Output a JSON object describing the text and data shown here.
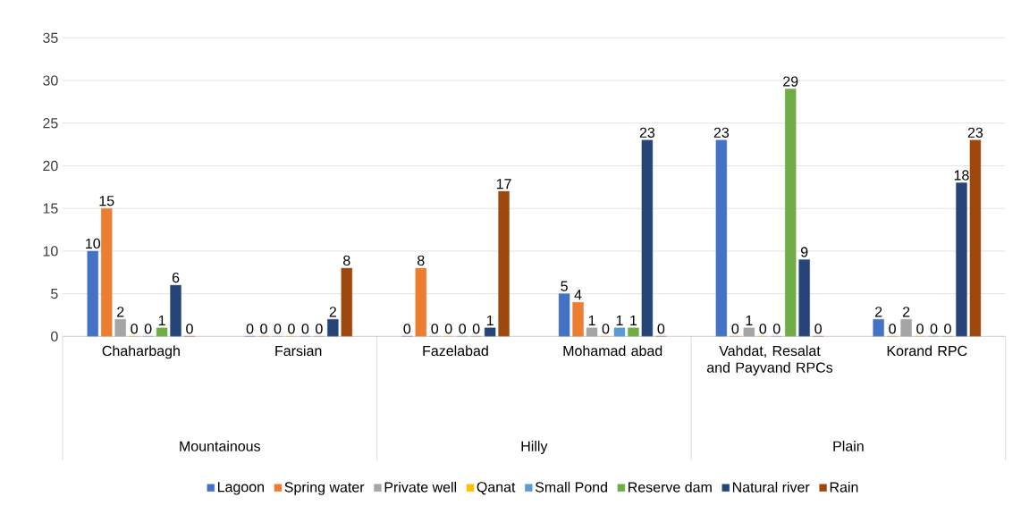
{
  "chart_data": {
    "type": "bar",
    "categories": [
      "Chaharbagh",
      "Farsian",
      "Fazelabad",
      "Mohamad abad",
      "Vahdat, Resalat and Payvand RPCs",
      "Korand RPC"
    ],
    "series": [
      {
        "name": "Lagoon",
        "color": "#4472c4",
        "values": [
          10,
          0,
          0,
          5,
          23,
          2
        ]
      },
      {
        "name": "Spring water",
        "color": "#ed7d31",
        "values": [
          15,
          0,
          8,
          4,
          0,
          0
        ]
      },
      {
        "name": "Private well",
        "color": "#a5a5a5",
        "values": [
          2,
          0,
          0,
          1,
          1,
          2
        ]
      },
      {
        "name": "Qanat",
        "color": "#ffc000",
        "values": [
          0,
          0,
          0,
          0,
          0,
          0
        ]
      },
      {
        "name": "Small Pond",
        "color": "#5b9bd5",
        "values": [
          0,
          0,
          0,
          1,
          0,
          0
        ]
      },
      {
        "name": "Reserve dam",
        "color": "#70ad47",
        "values": [
          1,
          0,
          0,
          1,
          29,
          0
        ]
      },
      {
        "name": "Natural river",
        "color": "#264478",
        "values": [
          6,
          2,
          1,
          23,
          9,
          18
        ]
      },
      {
        "name": "Rain",
        "color": "#9e480e",
        "values": [
          0,
          8,
          17,
          0,
          0,
          23
        ]
      }
    ],
    "annotations": [
      "Mountainous",
      "Hilly",
      "Plain"
    ],
    "ylim": [
      0,
      35
    ],
    "yticks": [
      0,
      5,
      10,
      15,
      20,
      25,
      30,
      35
    ],
    "grid": "y",
    "legend": "bottom",
    "data_labels": true
  }
}
